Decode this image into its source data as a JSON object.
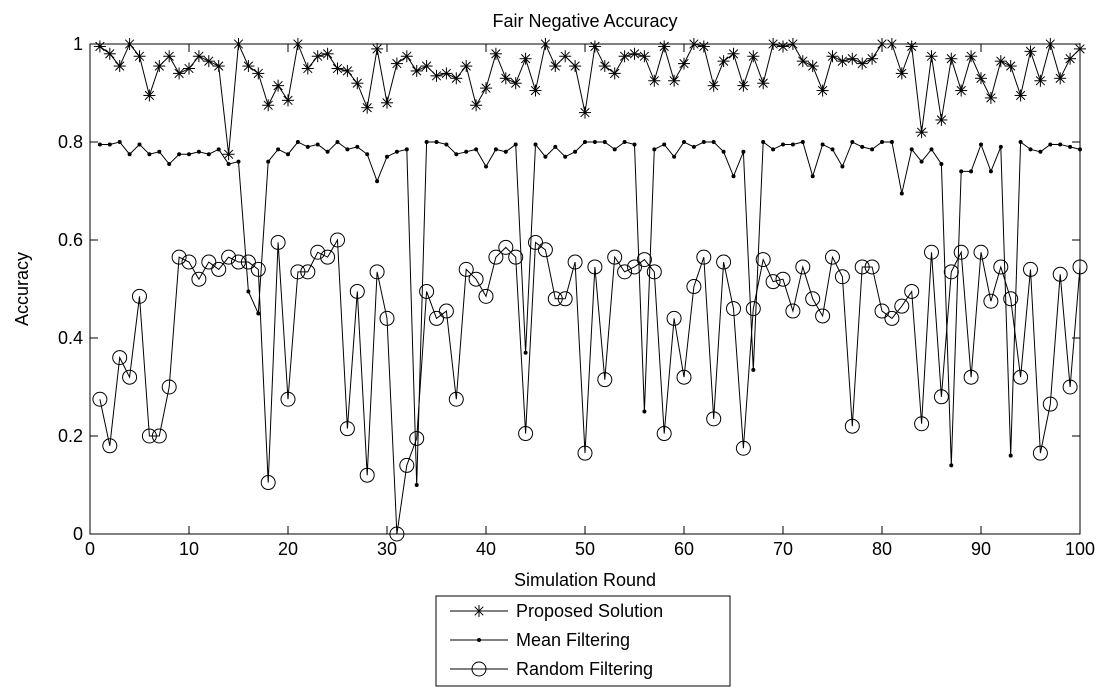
{
  "chart_data": {
    "type": "line",
    "title": "Fair Negative Accuracy",
    "xlabel": "Simulation Round",
    "ylabel": "Accuracy",
    "xlim": [
      0,
      100
    ],
    "ylim": [
      0,
      1
    ],
    "xticks": [
      0,
      10,
      20,
      30,
      40,
      50,
      60,
      70,
      80,
      90,
      100
    ],
    "yticks": [
      0,
      0.2,
      0.4,
      0.6,
      0.8,
      1
    ],
    "xtick_labels": [
      "0",
      "10",
      "20",
      "30",
      "40",
      "50",
      "60",
      "70",
      "80",
      "90",
      "100"
    ],
    "ytick_labels": [
      "0",
      "0.2",
      "0.4",
      "0.6",
      "0.8",
      "1"
    ],
    "grid": false,
    "legend_position": "bottom-center, outside plot",
    "x": [
      1,
      2,
      3,
      4,
      5,
      6,
      7,
      8,
      9,
      10,
      11,
      12,
      13,
      14,
      15,
      16,
      17,
      18,
      19,
      20,
      21,
      22,
      23,
      24,
      25,
      26,
      27,
      28,
      29,
      30,
      31,
      32,
      33,
      34,
      35,
      36,
      37,
      38,
      39,
      40,
      41,
      42,
      43,
      44,
      45,
      46,
      47,
      48,
      49,
      50,
      51,
      52,
      53,
      54,
      55,
      56,
      57,
      58,
      59,
      60,
      61,
      62,
      63,
      64,
      65,
      66,
      67,
      68,
      69,
      70,
      71,
      72,
      73,
      74,
      75,
      76,
      77,
      78,
      79,
      80,
      81,
      82,
      83,
      84,
      85,
      86,
      87,
      88,
      89,
      90,
      91,
      92,
      93,
      94,
      95,
      96,
      97,
      98,
      99,
      100
    ],
    "series": [
      {
        "name": "Proposed Solution",
        "marker": "asterisk",
        "values": [
          0.995,
          0.98,
          0.955,
          1.0,
          0.975,
          0.895,
          0.955,
          0.975,
          0.94,
          0.95,
          0.975,
          0.965,
          0.955,
          0.775,
          1.0,
          0.955,
          0.94,
          0.875,
          0.915,
          0.885,
          1.0,
          0.95,
          0.975,
          0.98,
          0.95,
          0.945,
          0.92,
          0.87,
          0.99,
          0.88,
          0.96,
          0.975,
          0.945,
          0.955,
          0.935,
          0.94,
          0.93,
          0.955,
          0.875,
          0.91,
          0.98,
          0.93,
          0.92,
          0.97,
          0.905,
          1.0,
          0.955,
          0.975,
          0.955,
          0.86,
          0.995,
          0.955,
          0.94,
          0.975,
          0.98,
          0.975,
          0.925,
          0.995,
          0.925,
          0.96,
          1.0,
          0.995,
          0.915,
          0.965,
          0.98,
          0.915,
          0.975,
          0.92,
          1.0,
          0.995,
          1.0,
          0.965,
          0.955,
          0.905,
          0.975,
          0.965,
          0.97,
          0.96,
          0.97,
          1.0,
          1.0,
          0.94,
          0.995,
          0.82,
          0.975,
          0.845,
          0.97,
          0.905,
          0.975,
          0.93,
          0.89,
          0.965,
          0.955,
          0.895,
          0.985,
          0.925,
          1.0,
          0.93,
          0.97,
          0.99
        ]
      },
      {
        "name": "Mean Filtering",
        "marker": "dot",
        "values": [
          0.795,
          0.795,
          0.8,
          0.775,
          0.795,
          0.775,
          0.78,
          0.755,
          0.775,
          0.775,
          0.78,
          0.775,
          0.785,
          0.755,
          0.76,
          0.495,
          0.45,
          0.76,
          0.785,
          0.775,
          0.8,
          0.79,
          0.795,
          0.78,
          0.8,
          0.785,
          0.79,
          0.775,
          0.72,
          0.77,
          0.78,
          0.785,
          0.1,
          0.8,
          0.8,
          0.795,
          0.775,
          0.78,
          0.785,
          0.75,
          0.785,
          0.78,
          0.795,
          0.37,
          0.795,
          0.77,
          0.79,
          0.77,
          0.78,
          0.8,
          0.8,
          0.8,
          0.785,
          0.8,
          0.795,
          0.25,
          0.785,
          0.795,
          0.77,
          0.8,
          0.79,
          0.8,
          0.8,
          0.78,
          0.73,
          0.78,
          0.335,
          0.8,
          0.785,
          0.795,
          0.795,
          0.8,
          0.73,
          0.795,
          0.785,
          0.75,
          0.8,
          0.79,
          0.785,
          0.8,
          0.8,
          0.695,
          0.785,
          0.76,
          0.785,
          0.755,
          0.14,
          0.74,
          0.74,
          0.795,
          0.74,
          0.79,
          0.16,
          0.8,
          0.785,
          0.78,
          0.795,
          0.795,
          0.79,
          0.785
        ]
      },
      {
        "name": "Random Filtering",
        "marker": "circle",
        "values": [
          0.275,
          0.18,
          0.36,
          0.32,
          0.485,
          0.2,
          0.2,
          0.3,
          0.565,
          0.555,
          0.52,
          0.555,
          0.54,
          0.565,
          0.555,
          0.555,
          0.54,
          0.105,
          0.595,
          0.275,
          0.535,
          0.535,
          0.575,
          0.565,
          0.6,
          0.215,
          0.495,
          0.12,
          0.535,
          0.44,
          0.0,
          0.14,
          0.195,
          0.495,
          0.44,
          0.455,
          0.275,
          0.54,
          0.52,
          0.485,
          0.565,
          0.585,
          0.565,
          0.205,
          0.595,
          0.58,
          0.48,
          0.48,
          0.555,
          0.165,
          0.545,
          0.315,
          0.565,
          0.535,
          0.545,
          0.56,
          0.535,
          0.205,
          0.44,
          0.32,
          0.505,
          0.565,
          0.235,
          0.555,
          0.46,
          0.175,
          0.46,
          0.56,
          0.515,
          0.52,
          0.455,
          0.545,
          0.48,
          0.445,
          0.565,
          0.525,
          0.22,
          0.545,
          0.545,
          0.455,
          0.44,
          0.465,
          0.495,
          0.225,
          0.575,
          0.28,
          0.535,
          0.575,
          0.32,
          0.575,
          0.475,
          0.545,
          0.48,
          0.32,
          0.54,
          0.165,
          0.265,
          0.53,
          0.3,
          0.545
        ]
      }
    ]
  }
}
